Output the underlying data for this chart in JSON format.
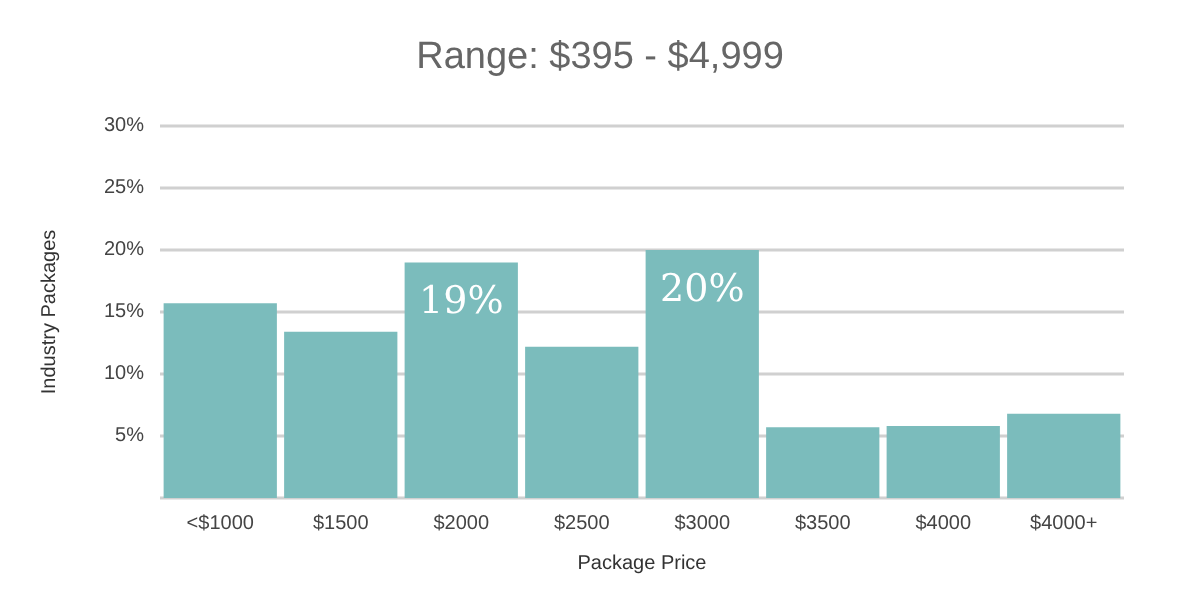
{
  "chart_data": {
    "type": "bar",
    "title": "Range: $395 - $4,999",
    "xlabel": "Package Price",
    "ylabel": "Industry Packages",
    "categories": [
      "<$1000",
      "$1500",
      "$2000",
      "$2500",
      "$3000",
      "$3500",
      "$4000",
      "$4000+"
    ],
    "values": [
      15.7,
      13.4,
      19,
      12.2,
      20,
      5.7,
      5.8,
      6.8
    ],
    "value_labels": [
      null,
      null,
      "19%",
      null,
      "20%",
      null,
      null,
      null
    ],
    "color": "#7bbcbc",
    "ylim": [
      0,
      30
    ],
    "yticks": [
      {
        "value": 0,
        "label": null
      },
      {
        "value": 5,
        "label": "5%"
      },
      {
        "value": 10,
        "label": "10%"
      },
      {
        "value": 15,
        "label": "15%"
      },
      {
        "value": 20,
        "label": "20%"
      },
      {
        "value": 25,
        "label": "25%"
      },
      {
        "value": 30,
        "label": "30%"
      }
    ],
    "grid": "y"
  }
}
